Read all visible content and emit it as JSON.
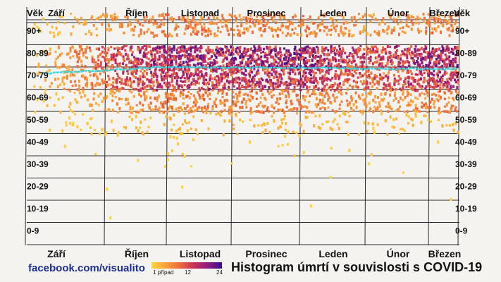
{
  "chart_data": {
    "type": "heatmap",
    "title": "Histogram úmrtí v souvislosti s COVID-19",
    "y_axis_label": "Věk",
    "months": [
      "Září",
      "Říjen",
      "Listopad",
      "Prosinec",
      "Leden",
      "Únor",
      "Březen"
    ],
    "age_groups": [
      "90+",
      "80-89",
      "70-79",
      "60-69",
      "50-59",
      "40-49",
      "30-39",
      "20-29",
      "10-19",
      "0-9"
    ],
    "monthly_intensity": [
      0.1,
      0.55,
      0.85,
      0.8,
      0.85,
      0.6,
      0.8
    ],
    "age_density": {
      "90+": 0.45,
      "80-89": 1.0,
      "70-79": 0.85,
      "60-69": 0.45,
      "50-59": 0.18,
      "40-49": 0.06,
      "30-39": 0.02,
      "20-29": 0.01,
      "10-19": 0.003,
      "0-9": 0.001
    },
    "median_age_line": {
      "start": 76,
      "mid": 79,
      "end": 78
    },
    "legend": {
      "scale": "cases per cell",
      "min_label": "1 případ",
      "mid_label": "12",
      "max_label": "24",
      "colors": [
        "#ffd43b",
        "#f9a23a",
        "#ec6a3c",
        "#c9305a",
        "#8b1c7f",
        "#3b0c8f"
      ]
    },
    "median_line_color": "#35d6e0",
    "grid": true
  },
  "footer": {
    "source": "facebook.com/visualito",
    "title": "Histogram úmrtí v souvislosti s COVID-19"
  }
}
